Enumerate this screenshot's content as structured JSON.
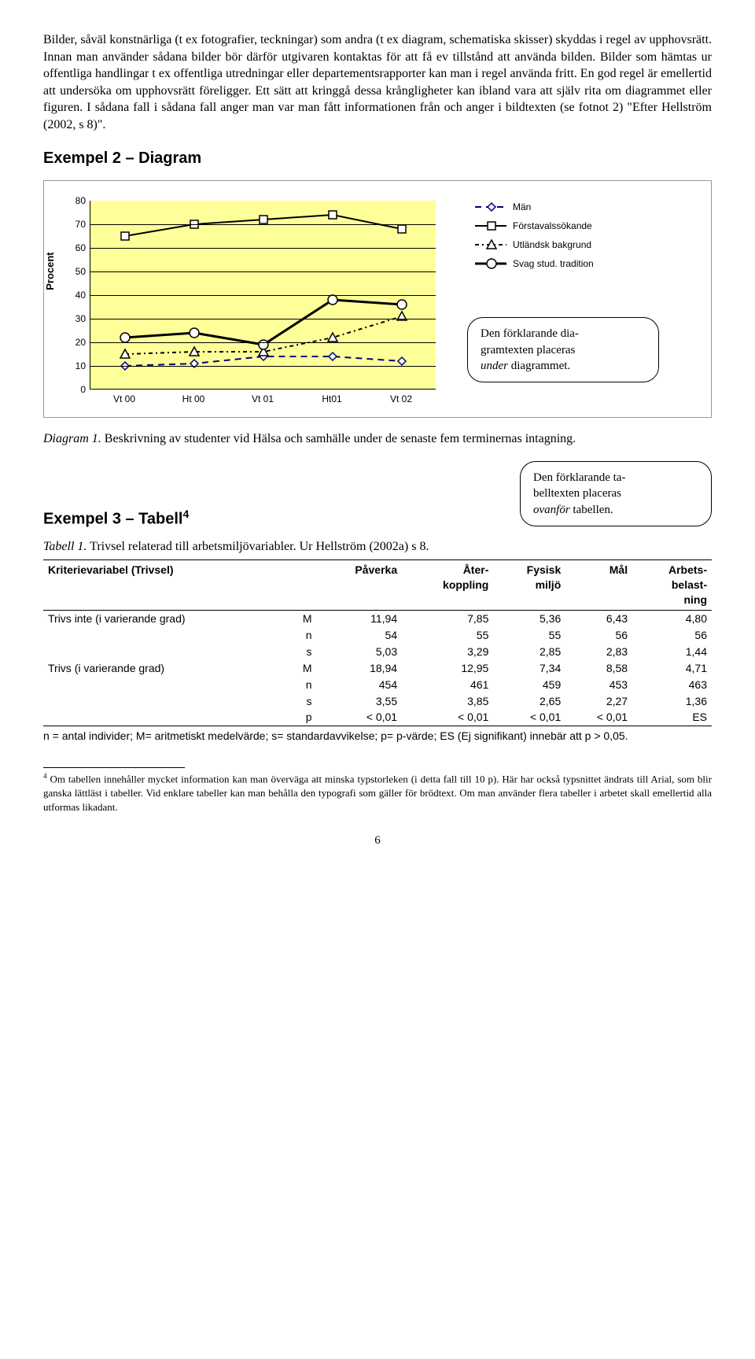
{
  "para1": "Bilder, såväl konstnärliga (t ex fotografier, teckningar) som andra (t ex diagram, schematiska skisser) skyddas i regel av upphovsrätt. Innan man använder sådana bilder bör därför utgivaren kontaktas för att få ev tillstånd att använda bilden. Bilder som hämtas ur offentliga handlingar t ex offentliga utredningar eller departementsrapporter kan man i regel använda fritt. En god regel är emellertid att undersöka om upphovsrätt föreligger. Ett sätt att kringgå dessa krångligheter kan ibland vara att själv rita om diagrammet eller figuren. I sådana fall i sådana fall anger man var man fått informationen från och anger i bildtexten (se fotnot 2) \"Efter Hellström (2002, s 8)\".",
  "heading2": "Exempel 2 – Diagram",
  "chart": {
    "ylabel": "Procent",
    "ylim": [
      0,
      80
    ],
    "ytick_step": 10,
    "background_color": "#ffff99",
    "grid_color": "#000000",
    "categories": [
      "Vt 00",
      "Ht 00",
      "Vt 01",
      "Ht01",
      "Vt 02"
    ],
    "series": [
      {
        "name": "Män",
        "values": [
          10,
          11,
          14,
          14,
          12
        ],
        "color": "#000080",
        "dash": "8,6",
        "marker": "diamond"
      },
      {
        "name": "Förstavalssökande",
        "values": [
          65,
          70,
          72,
          74,
          68
        ],
        "color": "#000000",
        "dash": "none",
        "marker": "square"
      },
      {
        "name": "Utländsk bakgrund",
        "values": [
          15,
          16,
          16,
          22,
          31
        ],
        "color": "#000000",
        "dash": "5,4,2,4",
        "marker": "triangle"
      },
      {
        "name": "Svag stud. tradition",
        "values": [
          22,
          24,
          19,
          38,
          36
        ],
        "color": "#000000",
        "dash": "none",
        "marker": "circle",
        "width": 3
      }
    ]
  },
  "callout1_l1": "Den förklarande dia-",
  "callout1_l2": "gramtexten placeras",
  "callout1_l3": "under",
  "callout1_l4": " diagrammet.",
  "diagcaption_label": "Diagram 1.",
  "diagcaption_text": "  Beskrivning av studenter vid Hälsa och samhälle under de senaste fem terminernas intagning.",
  "heading3_text": "Exempel 3 – Tabell",
  "heading3_sup": "4",
  "callout2_l1": "Den förklarande ta-",
  "callout2_l2": "belltexten placeras",
  "callout2_l3": "ovanför",
  "callout2_l4": " tabellen.",
  "tabcaption_label": "Tabell 1.",
  "tabcaption_text": " Trivsel relaterad till arbetsmiljövariabler. Ur Hellström (2002a) s 8.",
  "table": {
    "columns": [
      "Kriterievariabel (Trivsel)",
      "",
      "Påverka",
      "Åter-\nkoppling",
      "Fysisk\nmiljö",
      "Mål",
      "Arbets-\nbelast-\nning"
    ],
    "rows": [
      [
        "Trivs inte (i varierande grad)",
        "M",
        "11,94",
        "7,85",
        "5,36",
        "6,43",
        "4,80"
      ],
      [
        "",
        "n",
        "54",
        "55",
        "55",
        "56",
        "56"
      ],
      [
        "",
        "s",
        "5,03",
        "3,29",
        "2,85",
        "2,83",
        "1,44"
      ],
      [
        "Trivs (i varierande grad)",
        "M",
        "18,94",
        "12,95",
        "7,34",
        "8,58",
        "4,71"
      ],
      [
        "",
        "n",
        "454",
        "461",
        "459",
        "453",
        "463"
      ],
      [
        "",
        "s",
        "3,55",
        "3,85",
        "2,65",
        "2,27",
        "1,36"
      ],
      [
        "",
        "p",
        "< 0,01",
        "< 0,01",
        "< 0,01",
        "< 0,01",
        "ES"
      ]
    ],
    "note": "n = antal individer; M= aritmetiskt medelvärde; s= standardavvikelse; p= p-värde; ES (Ej signifikant) innebär att p > 0,05."
  },
  "footnote_num": "4",
  "footnote_text": " Om tabellen innehåller mycket information kan man överväga att minska typstorleken (i detta fall till 10 p). Här har också typsnittet ändrats till Arial, som blir ganska lättläst i tabeller. Vid enklare tabeller kan man behålla den typografi som gäller för brödtext. Om man använder flera tabeller i arbetet skall emellertid alla utformas likadant.",
  "pagenum": "6"
}
